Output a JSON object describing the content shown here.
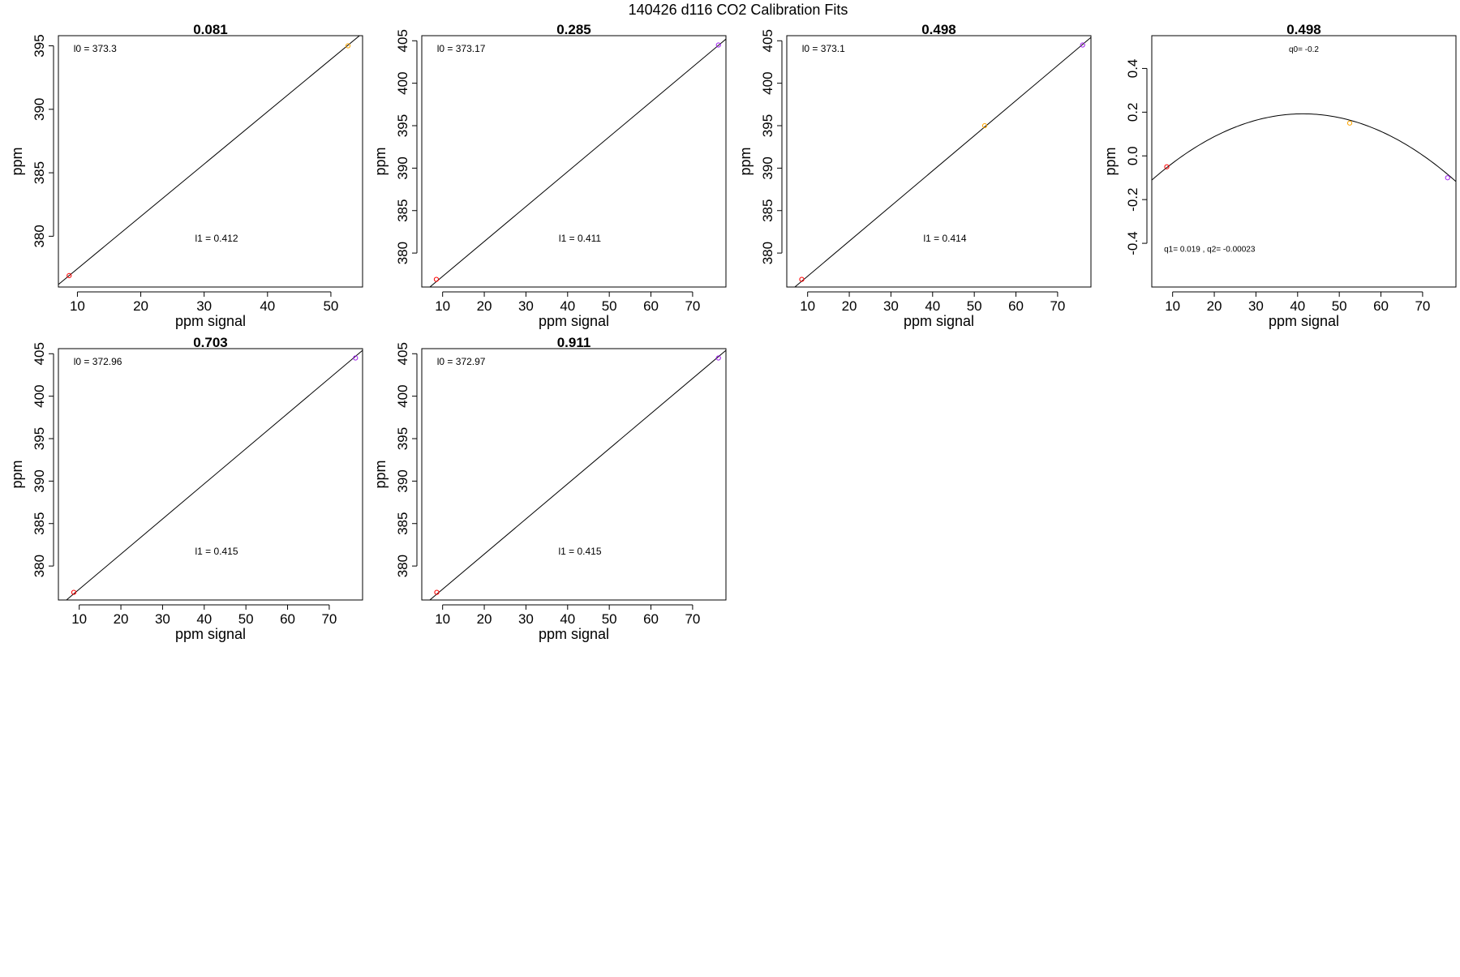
{
  "figure": {
    "title": "140426   d116   CO2 Calibration Fits"
  },
  "chart_data": [
    {
      "type": "scatter",
      "title": "0.081",
      "xlabel": "ppm signal",
      "ylabel": "ppm",
      "xlim": [
        7,
        55
      ],
      "ylim": [
        376,
        395.8
      ],
      "xticks": [
        10,
        20,
        30,
        40,
        50
      ],
      "yticks": [
        380,
        385,
        390,
        395
      ],
      "points": [
        {
          "x": 8.7,
          "y": 376.9,
          "color": "#ff0000"
        },
        {
          "x": 52.7,
          "y": 395.0,
          "color": "#ffa500"
        }
      ],
      "fit": {
        "kind": "linear",
        "x": [
          7,
          55
        ],
        "y": [
          376.2,
          396.0
        ]
      },
      "annotations": [
        "l0 =  373.3",
        "l1 =  0.412"
      ],
      "grid": false
    },
    {
      "type": "scatter",
      "title": "0.285",
      "xlabel": "ppm signal",
      "ylabel": "ppm",
      "xlim": [
        5,
        78
      ],
      "ylim": [
        376,
        405.6
      ],
      "xticks": [
        10,
        20,
        30,
        40,
        50,
        60,
        70
      ],
      "yticks": [
        380,
        385,
        390,
        395,
        400,
        405
      ],
      "points": [
        {
          "x": 8.5,
          "y": 376.9,
          "color": "#ff0000"
        },
        {
          "x": 76.2,
          "y": 404.5,
          "color": "#a020f0"
        }
      ],
      "fit": {
        "kind": "linear",
        "x": [
          5,
          78
        ],
        "y": [
          375.2,
          405.2
        ]
      },
      "annotations": [
        "l0 =  373.17",
        "l1 =  0.411"
      ],
      "grid": false
    },
    {
      "type": "scatter",
      "title": "0.498",
      "xlabel": "ppm signal",
      "ylabel": "ppm",
      "xlim": [
        5,
        78
      ],
      "ylim": [
        376,
        405.6
      ],
      "xticks": [
        10,
        20,
        30,
        40,
        50,
        60,
        70
      ],
      "yticks": [
        380,
        385,
        390,
        395,
        400,
        405
      ],
      "points": [
        {
          "x": 8.6,
          "y": 376.9,
          "color": "#ff0000"
        },
        {
          "x": 52.5,
          "y": 395.0,
          "color": "#ffa500"
        },
        {
          "x": 76.0,
          "y": 404.5,
          "color": "#a020f0"
        }
      ],
      "fit": {
        "kind": "linear",
        "x": [
          5,
          78
        ],
        "y": [
          375.2,
          405.4
        ]
      },
      "annotations": [
        "l0 =  373.1",
        "l1 =  0.414"
      ],
      "grid": false
    },
    {
      "type": "scatter",
      "title": "0.498",
      "xlabel": "ppm signal",
      "ylabel": "",
      "ylabel_annotation": "ppm",
      "xlim": [
        5,
        78
      ],
      "ylim": [
        -0.6,
        0.55
      ],
      "xticks": [
        10,
        20,
        30,
        40,
        50,
        60,
        70
      ],
      "yticks": [
        -0.4,
        -0.2,
        0.0,
        0.2,
        0.4
      ],
      "ytick_labels": [
        "-0.4",
        "-0.2",
        "0.0",
        "0.2",
        "0.4"
      ],
      "points": [
        {
          "x": 8.6,
          "y": -0.05,
          "color": "#ff0000"
        },
        {
          "x": 52.5,
          "y": 0.15,
          "color": "#ffa500"
        },
        {
          "x": 76.0,
          "y": -0.1,
          "color": "#a020f0"
        }
      ],
      "fit": {
        "kind": "quadratic",
        "q0": -0.2,
        "q1": 0.019,
        "q2": -0.00023
      },
      "annotations": [
        "q0= -0.2",
        "q1= 0.019 , q2= -0.00023"
      ],
      "grid": false
    },
    {
      "type": "scatter",
      "title": "0.703",
      "xlabel": "ppm signal",
      "ylabel": "ppm",
      "xlim": [
        5,
        78
      ],
      "ylim": [
        376,
        405.6
      ],
      "xticks": [
        10,
        20,
        30,
        40,
        50,
        60,
        70
      ],
      "yticks": [
        380,
        385,
        390,
        395,
        400,
        405
      ],
      "points": [
        {
          "x": 8.7,
          "y": 376.9,
          "color": "#ff0000"
        },
        {
          "x": 76.3,
          "y": 404.5,
          "color": "#a020f0"
        }
      ],
      "fit": {
        "kind": "linear",
        "x": [
          5,
          78
        ],
        "y": [
          375.2,
          405.4
        ]
      },
      "annotations": [
        "l0 =  372.96",
        "l1 =  0.415"
      ],
      "grid": false
    },
    {
      "type": "scatter",
      "title": "0.911",
      "xlabel": "ppm signal",
      "ylabel": "ppm",
      "xlim": [
        5,
        78
      ],
      "ylim": [
        376,
        405.6
      ],
      "xticks": [
        10,
        20,
        30,
        40,
        50,
        60,
        70
      ],
      "yticks": [
        380,
        385,
        390,
        395,
        400,
        405
      ],
      "points": [
        {
          "x": 8.6,
          "y": 376.9,
          "color": "#ff0000"
        },
        {
          "x": 76.2,
          "y": 404.5,
          "color": "#a020f0"
        }
      ],
      "fit": {
        "kind": "linear",
        "x": [
          5,
          78
        ],
        "y": [
          375.2,
          405.4
        ]
      },
      "annotations": [
        "l0 =  372.97",
        "l1 =  0.415"
      ],
      "grid": false
    }
  ]
}
